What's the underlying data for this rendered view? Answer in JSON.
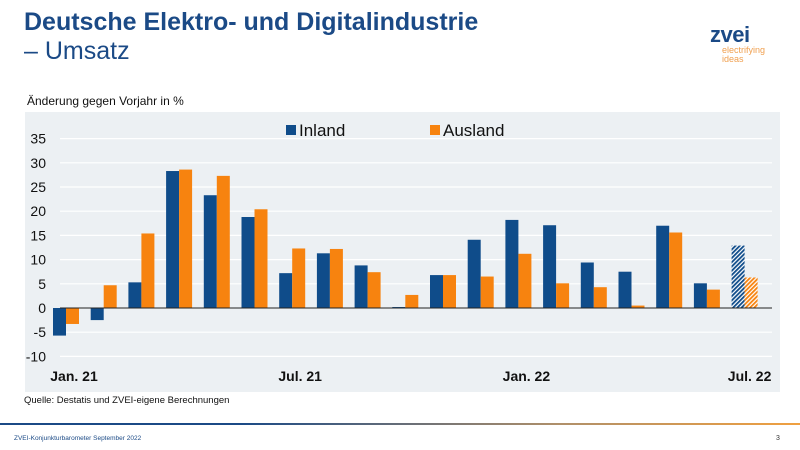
{
  "header": {
    "title": "Deutsche Elektro- und Digitalindustrie",
    "subtitle": "– Umsatz"
  },
  "logo": {
    "wordmark": "zvei",
    "tagline_1": "electrifying",
    "tagline_2": "ideas",
    "colors": {
      "wordmark": "#1b4a86",
      "tagline": "#f0a050"
    }
  },
  "chart_data": {
    "type": "bar",
    "title": "",
    "ylabel": "Änderung gegen Vorjahr in %",
    "xlabel": "",
    "ylim": [
      -10,
      35
    ],
    "yticks": [
      35,
      30,
      25,
      20,
      15,
      10,
      5,
      0,
      -5,
      -10
    ],
    "x_tick_labels": [
      {
        "index": 0,
        "label": "Jan. 21"
      },
      {
        "index": 6,
        "label": "Jul. 21"
      },
      {
        "index": 12,
        "label": "Jan. 22"
      },
      {
        "index": 18,
        "label": "Jul. 22"
      }
    ],
    "grid": true,
    "legend_position": "top-center",
    "last_bar_hatched": true,
    "series": [
      {
        "name": "Inland",
        "color": "#0f4c8a",
        "values": [
          -5.7,
          -2.5,
          5.3,
          28.3,
          23.3,
          18.8,
          7.2,
          11.3,
          8.8,
          0.2,
          6.8,
          14.1,
          18.2,
          17.1,
          9.4,
          7.5,
          17.0,
          5.1,
          12.9
        ]
      },
      {
        "name": "Ausland",
        "color": "#f7830f",
        "values": [
          -3.3,
          4.7,
          15.4,
          28.6,
          27.3,
          20.4,
          12.3,
          12.2,
          7.4,
          2.7,
          6.8,
          6.5,
          11.2,
          5.1,
          4.3,
          0.5,
          15.6,
          3.8,
          6.3
        ]
      }
    ]
  },
  "source": "Quelle: Destatis und ZVEI-eigene Berechnungen",
  "footer": {
    "text": "ZVEI-Konjunkturbarometer September 2022",
    "page": "3"
  }
}
